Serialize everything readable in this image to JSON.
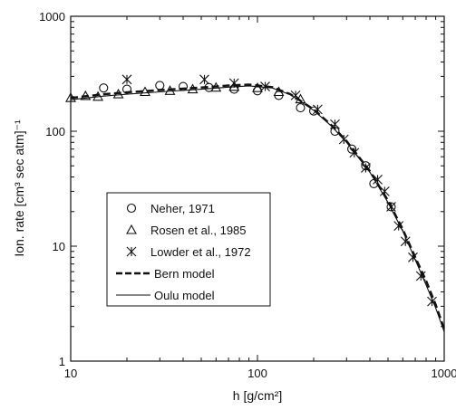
{
  "chart_data": {
    "type": "scatter",
    "title": "",
    "xlabel": "h [g/cm²]",
    "ylabel": "Ion. rate [cm³ sec atm]⁻¹",
    "xscale": "log",
    "yscale": "log",
    "xlim": [
      10,
      1000
    ],
    "ylim": [
      1,
      1000
    ],
    "x_ticks": [
      "10",
      "100",
      "1000"
    ],
    "y_ticks": [
      "1",
      "10",
      "100",
      "1000"
    ],
    "grid": false,
    "legend_position": "center-left",
    "series": [
      {
        "name": "Neher, 1971",
        "kind": "points",
        "marker": "circle",
        "x": [
          15,
          20,
          30,
          40,
          55,
          75,
          100,
          130,
          170,
          200,
          260,
          320,
          380,
          420,
          520
        ],
        "y": [
          238,
          232,
          250,
          245,
          240,
          232,
          225,
          205,
          160,
          150,
          100,
          70,
          50,
          35,
          22
        ]
      },
      {
        "name": "Rosen et al., 1985",
        "kind": "points",
        "marker": "triangle",
        "x": [
          10,
          12,
          14,
          18,
          25,
          34,
          45,
          60,
          75,
          100,
          130,
          170
        ],
        "y": [
          195,
          203,
          200,
          210,
          220,
          225,
          232,
          240,
          244,
          238,
          220,
          190
        ]
      },
      {
        "name": "Lowder et al., 1972",
        "kind": "points",
        "marker": "asterisk",
        "x": [
          20,
          52,
          75,
          110,
          160,
          210,
          260,
          290,
          330,
          380,
          440,
          480,
          520,
          570,
          620,
          680,
          750,
          860
        ],
        "y": [
          282,
          282,
          262,
          245,
          205,
          155,
          115,
          85,
          65,
          48,
          38,
          30,
          22,
          15,
          11,
          8,
          5.5,
          3.3
        ]
      },
      {
        "name": "Bern model",
        "kind": "line",
        "style": "dashed",
        "x": [
          10,
          15,
          20,
          30,
          50,
          70,
          90,
          120,
          150,
          200,
          250,
          300,
          400,
          500,
          600,
          700,
          800,
          900,
          1000
        ],
        "y": [
          195,
          210,
          218,
          228,
          240,
          250,
          255,
          242,
          210,
          155,
          112,
          82,
          45,
          25,
          14,
          8,
          5,
          3.1,
          1.9
        ]
      },
      {
        "name": "Oulu model",
        "kind": "line",
        "style": "solid",
        "x": [
          10,
          15,
          20,
          30,
          50,
          70,
          90,
          120,
          150,
          200,
          250,
          300,
          400,
          500,
          600,
          700,
          800,
          900,
          1000
        ],
        "y": [
          188,
          202,
          210,
          220,
          232,
          242,
          248,
          238,
          208,
          152,
          110,
          80,
          44,
          24,
          13.5,
          7.6,
          4.6,
          2.9,
          1.8
        ]
      }
    ]
  }
}
